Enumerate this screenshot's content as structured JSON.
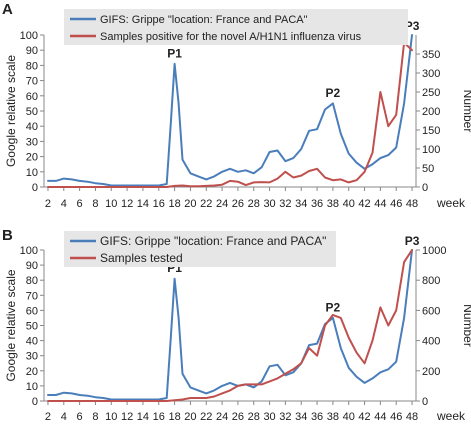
{
  "chart_data": [
    {
      "panel_label": "A",
      "type": "line",
      "left_ylabel": "Google relative scale",
      "right_ylabel": "Number",
      "xlabel": "week",
      "x_ticks": [
        2,
        4,
        6,
        8,
        10,
        12,
        14,
        16,
        18,
        20,
        22,
        24,
        26,
        28,
        30,
        32,
        34,
        36,
        38,
        40,
        42,
        44,
        46,
        48
      ],
      "x_range": [
        1.5,
        48.5
      ],
      "left_ylim": [
        0,
        100
      ],
      "left_ticks": [
        0,
        10,
        20,
        30,
        40,
        50,
        60,
        70,
        80,
        90,
        100
      ],
      "right_ylim": [
        0,
        400
      ],
      "right_ticks": [
        0,
        50,
        100,
        150,
        200,
        250,
        300,
        350
      ],
      "legend": {
        "placement": "top-left",
        "background": "#e6e6e6"
      },
      "peak_labels": [
        {
          "text": "P1",
          "x": 18,
          "y": 82
        },
        {
          "text": "P2",
          "x": 38,
          "y": 56
        },
        {
          "text": "P3",
          "x": 48,
          "y": 100
        }
      ],
      "series": [
        {
          "name": "GIFS: Grippe \"location: France and PACA\"",
          "axis": "left",
          "color": "#4a7ebb",
          "x": [
            2,
            3,
            4,
            5,
            6,
            7,
            8,
            9,
            10,
            11,
            12,
            13,
            14,
            15,
            16,
            17,
            17.5,
            18,
            18.5,
            19,
            20,
            21,
            22,
            23,
            24,
            25,
            26,
            27,
            28,
            29,
            30,
            31,
            32,
            33,
            34,
            35,
            36,
            37,
            38,
            39,
            40,
            41,
            42,
            43,
            44,
            45,
            46,
            47,
            48
          ],
          "y": [
            4,
            4,
            5.5,
            5,
            4,
            3.5,
            2.5,
            2,
            1,
            1,
            1,
            1,
            1,
            1,
            1,
            2,
            40,
            81,
            55,
            18,
            9,
            7,
            5,
            7,
            10,
            12,
            10,
            11,
            9,
            13,
            23,
            24,
            17,
            19,
            25,
            37,
            38,
            51,
            55,
            35,
            22,
            16,
            12,
            15,
            19,
            21,
            26,
            55,
            100
          ]
        },
        {
          "name": "Samples positive for the novel A/H1N1 influenza virus",
          "axis": "right",
          "color": "#c0504d",
          "x": [
            2,
            4,
            6,
            8,
            10,
            12,
            14,
            16,
            17,
            18,
            19,
            20,
            21,
            22,
            23,
            24,
            25,
            26,
            27,
            28,
            29,
            30,
            31,
            32,
            33,
            34,
            35,
            36,
            37,
            38,
            39,
            40,
            41,
            42,
            43,
            44,
            45,
            46,
            47,
            48
          ],
          "y": [
            0,
            0,
            0,
            0,
            0,
            0,
            0,
            0,
            0,
            3,
            4,
            2,
            2,
            3,
            4,
            6,
            16,
            14,
            5,
            12,
            13,
            12,
            22,
            40,
            25,
            30,
            42,
            48,
            25,
            18,
            20,
            12,
            18,
            40,
            90,
            250,
            160,
            190,
            380,
            360
          ]
        }
      ]
    },
    {
      "panel_label": "B",
      "type": "line",
      "left_ylabel": "Google relative scale",
      "right_ylabel": "Number",
      "xlabel": "week",
      "x_ticks": [
        2,
        4,
        6,
        8,
        10,
        12,
        14,
        16,
        18,
        20,
        22,
        24,
        26,
        28,
        30,
        32,
        34,
        36,
        38,
        40,
        42,
        44,
        46,
        48
      ],
      "x_range": [
        1.5,
        48.5
      ],
      "left_ylim": [
        0,
        100
      ],
      "left_ticks": [
        0,
        10,
        20,
        30,
        40,
        50,
        60,
        70,
        80,
        90,
        100
      ],
      "right_ylim": [
        0,
        1000
      ],
      "right_ticks": [
        0,
        200,
        400,
        600,
        800,
        1000
      ],
      "legend": {
        "placement": "top-left",
        "background": "#e6e6e6"
      },
      "peak_labels": [
        {
          "text": "P1",
          "x": 18,
          "y": 82
        },
        {
          "text": "P2",
          "x": 38,
          "y": 56
        },
        {
          "text": "P3",
          "x": 48,
          "y": 100
        }
      ],
      "series": [
        {
          "name": "GIFS: Grippe \"location: France and PACA\"",
          "axis": "left",
          "color": "#4a7ebb",
          "x": [
            2,
            3,
            4,
            5,
            6,
            7,
            8,
            9,
            10,
            11,
            12,
            13,
            14,
            15,
            16,
            17,
            17.5,
            18,
            18.5,
            19,
            20,
            21,
            22,
            23,
            24,
            25,
            26,
            27,
            28,
            29,
            30,
            31,
            32,
            33,
            34,
            35,
            36,
            37,
            38,
            39,
            40,
            41,
            42,
            43,
            44,
            45,
            46,
            47,
            48
          ],
          "y": [
            4,
            4,
            5.5,
            5,
            4,
            3.5,
            2.5,
            2,
            1,
            1,
            1,
            1,
            1,
            1,
            1,
            2,
            40,
            81,
            55,
            18,
            9,
            7,
            5,
            7,
            10,
            12,
            10,
            11,
            9,
            13,
            23,
            24,
            17,
            19,
            25,
            37,
            38,
            51,
            55,
            35,
            22,
            16,
            12,
            15,
            19,
            21,
            26,
            55,
            100
          ]
        },
        {
          "name": "Samples tested",
          "axis": "right",
          "color": "#c0504d",
          "x": [
            2,
            4,
            6,
            8,
            10,
            12,
            14,
            16,
            17,
            18,
            19,
            20,
            21,
            22,
            23,
            24,
            25,
            26,
            27,
            28,
            29,
            30,
            31,
            32,
            33,
            34,
            35,
            36,
            37,
            38,
            39,
            40,
            41,
            42,
            43,
            44,
            45,
            46,
            47,
            48
          ],
          "y": [
            0,
            0,
            0,
            0,
            0,
            0,
            0,
            0,
            0,
            5,
            10,
            20,
            20,
            20,
            30,
            50,
            70,
            100,
            110,
            110,
            110,
            130,
            150,
            180,
            210,
            250,
            350,
            300,
            500,
            570,
            550,
            420,
            320,
            250,
            400,
            620,
            500,
            600,
            920,
            1000
          ]
        }
      ]
    }
  ]
}
